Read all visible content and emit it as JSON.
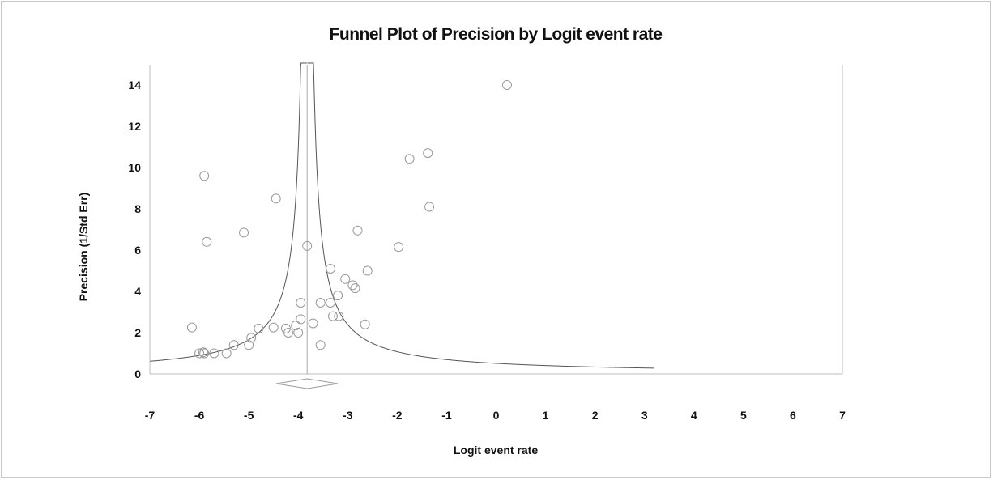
{
  "chart_data": {
    "type": "scatter",
    "title": "Funnel Plot of Precision by Logit event rate",
    "xlabel": "Logit event rate",
    "ylabel": "Precision (1/Std Err)",
    "xlim": [
      -7,
      7
    ],
    "ylim": [
      0,
      15
    ],
    "xticks": [
      "-7",
      "-6",
      "-5",
      "-4",
      "-3",
      "-2",
      "-1",
      "0",
      "1",
      "2",
      "3",
      "4",
      "5",
      "6",
      "7"
    ],
    "yticks": [
      "0",
      "2",
      "4",
      "6",
      "8",
      "10",
      "12",
      "14"
    ],
    "combined_effect": -3.82,
    "combined_ci": [
      -4.45,
      -3.2
    ],
    "funnel_x_range": [
      -7,
      3.2
    ],
    "funnel_slope": 1.96,
    "points": [
      {
        "x": 0.22,
        "y": 14.0
      },
      {
        "x": -1.38,
        "y": 10.7
      },
      {
        "x": -1.75,
        "y": 10.42
      },
      {
        "x": -5.9,
        "y": 9.6
      },
      {
        "x": -4.45,
        "y": 8.5
      },
      {
        "x": -1.35,
        "y": 8.1
      },
      {
        "x": -2.8,
        "y": 6.95
      },
      {
        "x": -5.1,
        "y": 6.85
      },
      {
        "x": -5.85,
        "y": 6.4
      },
      {
        "x": -3.82,
        "y": 6.2
      },
      {
        "x": -1.97,
        "y": 6.15
      },
      {
        "x": -3.35,
        "y": 5.1
      },
      {
        "x": -2.6,
        "y": 5.0
      },
      {
        "x": -3.05,
        "y": 4.6
      },
      {
        "x": -2.9,
        "y": 4.3
      },
      {
        "x": -2.85,
        "y": 4.15
      },
      {
        "x": -3.2,
        "y": 3.8
      },
      {
        "x": -3.55,
        "y": 3.45
      },
      {
        "x": -3.95,
        "y": 3.45
      },
      {
        "x": -3.35,
        "y": 3.45
      },
      {
        "x": -3.3,
        "y": 2.8
      },
      {
        "x": -3.18,
        "y": 2.8
      },
      {
        "x": -3.95,
        "y": 2.65
      },
      {
        "x": -3.7,
        "y": 2.45
      },
      {
        "x": -2.65,
        "y": 2.4
      },
      {
        "x": -4.05,
        "y": 2.35
      },
      {
        "x": -4.25,
        "y": 2.2
      },
      {
        "x": -4.5,
        "y": 2.25
      },
      {
        "x": -4.8,
        "y": 2.2
      },
      {
        "x": -6.15,
        "y": 2.25
      },
      {
        "x": -4.2,
        "y": 2.0
      },
      {
        "x": -4.0,
        "y": 2.0
      },
      {
        "x": -4.95,
        "y": 1.75
      },
      {
        "x": -3.55,
        "y": 1.4
      },
      {
        "x": -5.0,
        "y": 1.4
      },
      {
        "x": -5.3,
        "y": 1.4
      },
      {
        "x": -6.0,
        "y": 1.0
      },
      {
        "x": -5.9,
        "y": 1.0
      },
      {
        "x": -5.92,
        "y": 1.05
      },
      {
        "x": -5.7,
        "y": 1.0
      },
      {
        "x": -5.45,
        "y": 1.0
      }
    ]
  }
}
